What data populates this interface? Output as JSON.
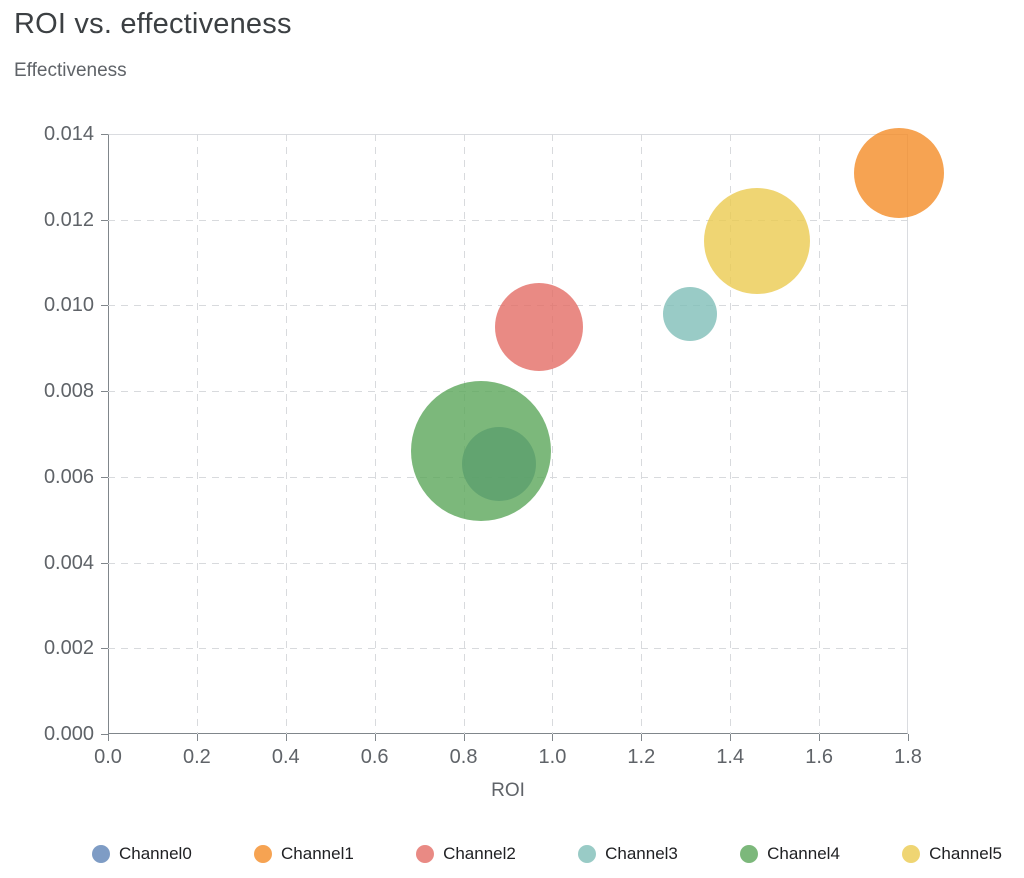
{
  "page": {
    "title": "ROI vs. effectiveness"
  },
  "chart_data": {
    "type": "scatter",
    "subtype": "bubble",
    "title": "ROI vs. effectiveness",
    "xlabel": "ROI",
    "ylabel": "Effectiveness",
    "xlim": [
      0,
      1.8
    ],
    "ylim": [
      0,
      0.014
    ],
    "x_ticks": [
      "0.0",
      "0.2",
      "0.4",
      "0.6",
      "0.8",
      "1.0",
      "1.2",
      "1.4",
      "1.6",
      "1.8"
    ],
    "y_ticks": [
      "0.000",
      "0.002",
      "0.004",
      "0.006",
      "0.008",
      "0.010",
      "0.012",
      "0.014"
    ],
    "grid": true,
    "legend_position": "bottom",
    "marker_opacity": 0.8,
    "series": [
      {
        "name": "Channel0",
        "color": "#5e83b6",
        "points": [
          {
            "x": 0.88,
            "y": 0.0063,
            "radius_px": 37
          }
        ]
      },
      {
        "name": "Channel1",
        "color": "#f48c27",
        "points": [
          {
            "x": 1.78,
            "y": 0.0131,
            "radius_px": 45
          }
        ]
      },
      {
        "name": "Channel2",
        "color": "#e36d65",
        "points": [
          {
            "x": 0.97,
            "y": 0.0095,
            "radius_px": 44
          }
        ]
      },
      {
        "name": "Channel3",
        "color": "#80beb8",
        "points": [
          {
            "x": 1.31,
            "y": 0.0098,
            "radius_px": 27
          }
        ]
      },
      {
        "name": "Channel4",
        "color": "#5ba65a",
        "points": [
          {
            "x": 0.84,
            "y": 0.0066,
            "radius_px": 70
          }
        ]
      },
      {
        "name": "Channel5",
        "color": "#ebca50",
        "points": [
          {
            "x": 1.46,
            "y": 0.0115,
            "radius_px": 53
          }
        ]
      }
    ]
  },
  "colors": {
    "axis": "#80868b",
    "gridline": "#d8dadd",
    "plot_border": "#dadce0",
    "title_text": "#3c4043",
    "axis_text": "#5f6368",
    "legend_text": "#202124",
    "background": "#ffffff"
  }
}
